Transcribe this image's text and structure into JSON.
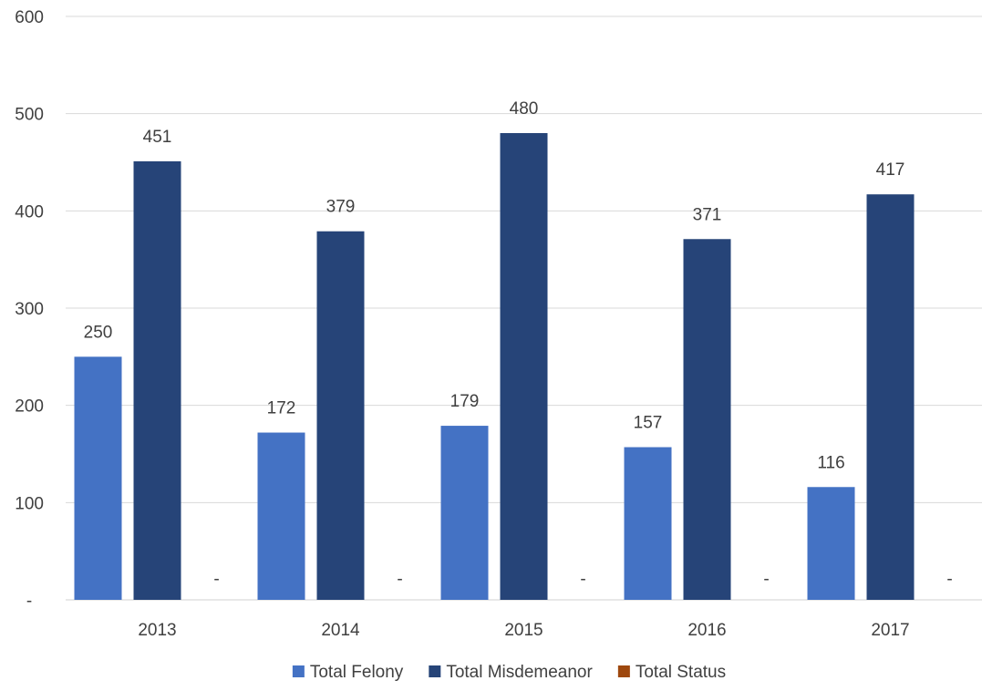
{
  "chart_data": {
    "type": "bar",
    "categories": [
      "2013",
      "2014",
      "2015",
      "2016",
      "2017"
    ],
    "series": [
      {
        "name": "Total Felony",
        "values": [
          250,
          172,
          179,
          157,
          116
        ],
        "color": "#4472c4"
      },
      {
        "name": "Total Misdemeanor",
        "values": [
          451,
          379,
          480,
          371,
          417
        ],
        "color": "#264478"
      },
      {
        "name": "Total Status",
        "values": [
          0,
          0,
          0,
          0,
          0
        ],
        "color": "#9e480e"
      }
    ],
    "y_ticks": [
      "-",
      "100",
      "200",
      "300",
      "400",
      "500",
      "600"
    ],
    "zero_label": "-",
    "ylim": [
      0,
      600
    ],
    "grid": true,
    "legend_position": "bottom"
  }
}
